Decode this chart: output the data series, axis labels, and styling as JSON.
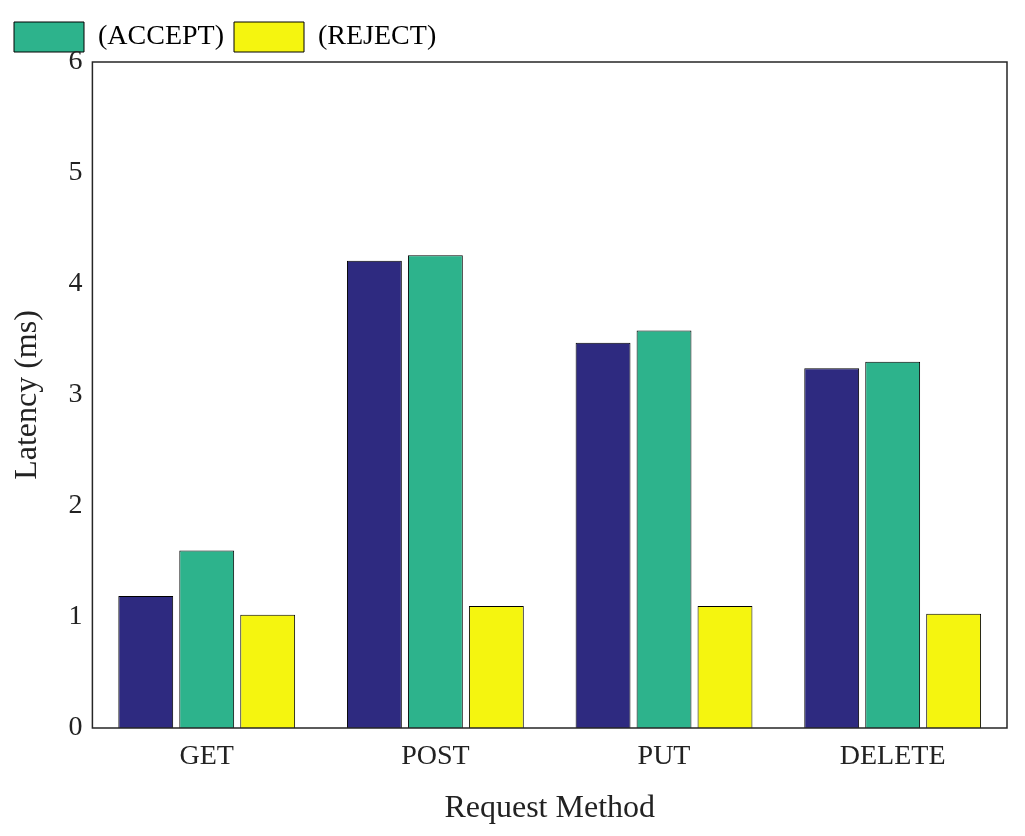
{
  "chart_data": {
    "type": "bar",
    "xlabel": "Request Method",
    "ylabel": "Latency (ms)",
    "categories": [
      "GET",
      "POST",
      "PUT",
      "DELETE"
    ],
    "series": [
      {
        "color": "#2e2a80",
        "values": [
          1.19,
          4.21,
          3.47,
          3.24
        ]
      },
      {
        "name": "(ACCEPT)",
        "color": "#2db38c",
        "values": [
          1.6,
          4.26,
          3.58,
          3.3
        ]
      },
      {
        "name": "(REJECT)",
        "color": "#f5f50f",
        "values": [
          1.02,
          1.1,
          1.1,
          1.03
        ]
      }
    ],
    "ylim": [
      0,
      6
    ],
    "yticks": [
      0,
      1,
      2,
      3,
      4,
      5,
      6
    ],
    "grid": false,
    "legend": "top left"
  }
}
